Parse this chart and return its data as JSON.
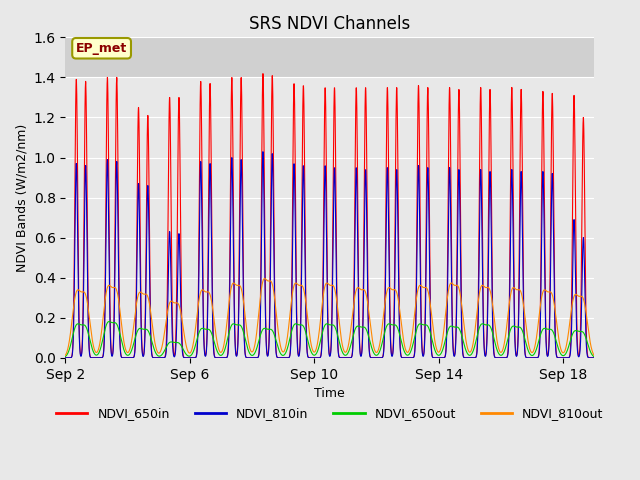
{
  "title": "SRS NDVI Channels",
  "xlabel": "Time",
  "ylabel": "NDVI Bands (W/m2/nm)",
  "ylim": [
    0.0,
    1.6
  ],
  "yticks": [
    0.0,
    0.2,
    0.4,
    0.6,
    0.8,
    1.0,
    1.2,
    1.4,
    1.6
  ],
  "annotation": "EP_met",
  "background_color": "#e8e8e8",
  "plot_bg_color": "#dcdcdc",
  "plot_bg_color2": "#e8e8e8",
  "series_colors": {
    "NDVI_650in": "#ff0000",
    "NDVI_810in": "#0000cc",
    "NDVI_650out": "#00cc00",
    "NDVI_810out": "#ff8800"
  },
  "num_cycles": 17,
  "start_day": 2,
  "end_day": 19,
  "xtick_positions": [
    2,
    6,
    10,
    14,
    18
  ],
  "xtick_labels": [
    "Sep 2",
    "Sep 6",
    "Sep 10",
    "Sep 14",
    "Sep 18"
  ],
  "peak_650in": [
    1.39,
    1.4,
    1.25,
    1.3,
    1.38,
    1.4,
    1.42,
    1.37,
    1.35,
    1.35,
    1.35,
    1.36,
    1.35,
    1.35,
    1.35,
    1.33,
    1.31
  ],
  "peak_650in2": [
    1.38,
    1.4,
    1.21,
    1.3,
    1.37,
    1.4,
    1.41,
    1.36,
    1.35,
    1.35,
    1.35,
    1.35,
    1.34,
    1.34,
    1.34,
    1.32,
    1.2
  ],
  "peak_810in": [
    0.97,
    0.99,
    0.87,
    0.63,
    0.98,
    1.0,
    1.03,
    0.97,
    0.96,
    0.95,
    0.95,
    0.96,
    0.95,
    0.94,
    0.94,
    0.93,
    0.69
  ],
  "peak_810in2": [
    0.96,
    0.98,
    0.86,
    0.62,
    0.97,
    0.99,
    1.02,
    0.96,
    0.95,
    0.94,
    0.94,
    0.95,
    0.94,
    0.93,
    0.93,
    0.92,
    0.6
  ],
  "peak_650out": [
    0.15,
    0.16,
    0.13,
    0.07,
    0.13,
    0.15,
    0.13,
    0.15,
    0.15,
    0.14,
    0.15,
    0.15,
    0.14,
    0.15,
    0.14,
    0.13,
    0.12
  ],
  "peak_810out": [
    0.3,
    0.32,
    0.29,
    0.25,
    0.3,
    0.33,
    0.35,
    0.33,
    0.33,
    0.31,
    0.31,
    0.32,
    0.33,
    0.32,
    0.31,
    0.3,
    0.28
  ]
}
